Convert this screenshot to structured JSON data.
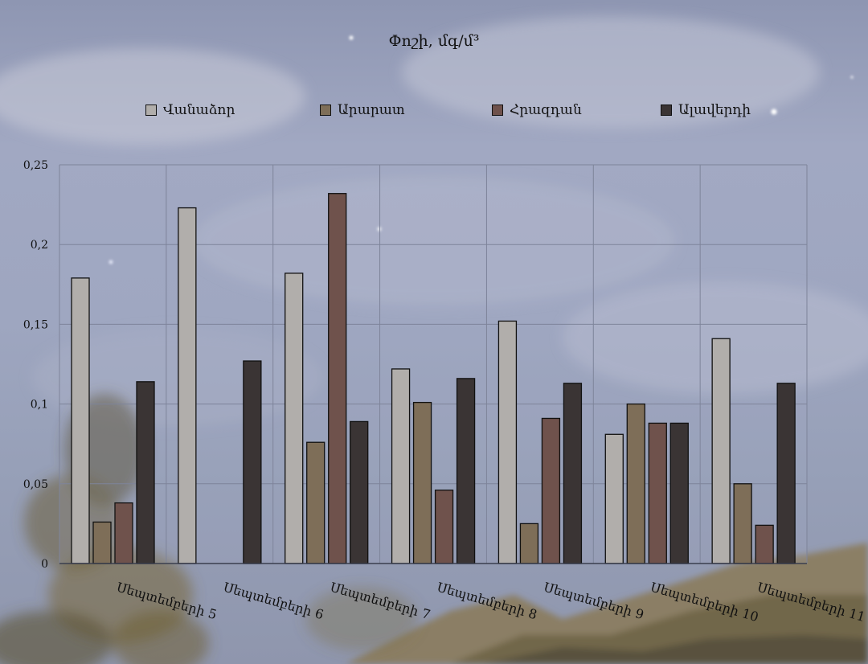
{
  "chart_data": {
    "type": "bar",
    "title": "Փոշի, մգ/մ³",
    "categories": [
      "Սեպտեմբերի 5",
      "Սեպտեմբերի 6",
      "Սեպտեմբերի 7",
      "Սեպտեմբերի 8",
      "Սեպտեմբերի 9",
      "Սեպտեմբերի 10",
      "Սեպտեմբերի 11"
    ],
    "series": [
      {
        "name": "Վանաձոր",
        "color": "#b1aeab",
        "values": [
          0.179,
          0.223,
          0.182,
          0.122,
          0.152,
          0.081,
          0.141
        ]
      },
      {
        "name": "Արարատ",
        "color": "#7e6e58",
        "values": [
          0.026,
          null,
          0.076,
          0.101,
          0.025,
          0.1,
          0.05
        ]
      },
      {
        "name": "Հրազդան",
        "color": "#6f524c",
        "values": [
          0.038,
          null,
          0.232,
          0.046,
          0.091,
          0.088,
          0.024
        ]
      },
      {
        "name": "Ալավերդի",
        "color": "#3a3434",
        "values": [
          0.114,
          0.127,
          0.089,
          0.116,
          0.113,
          0.088,
          0.113
        ]
      }
    ],
    "yticks": [
      "0",
      "0,05",
      "0,1",
      "0,15",
      "0,2",
      "0,25"
    ],
    "ylim": [
      0,
      0.25
    ],
    "grid": true,
    "legend_position": "top"
  }
}
